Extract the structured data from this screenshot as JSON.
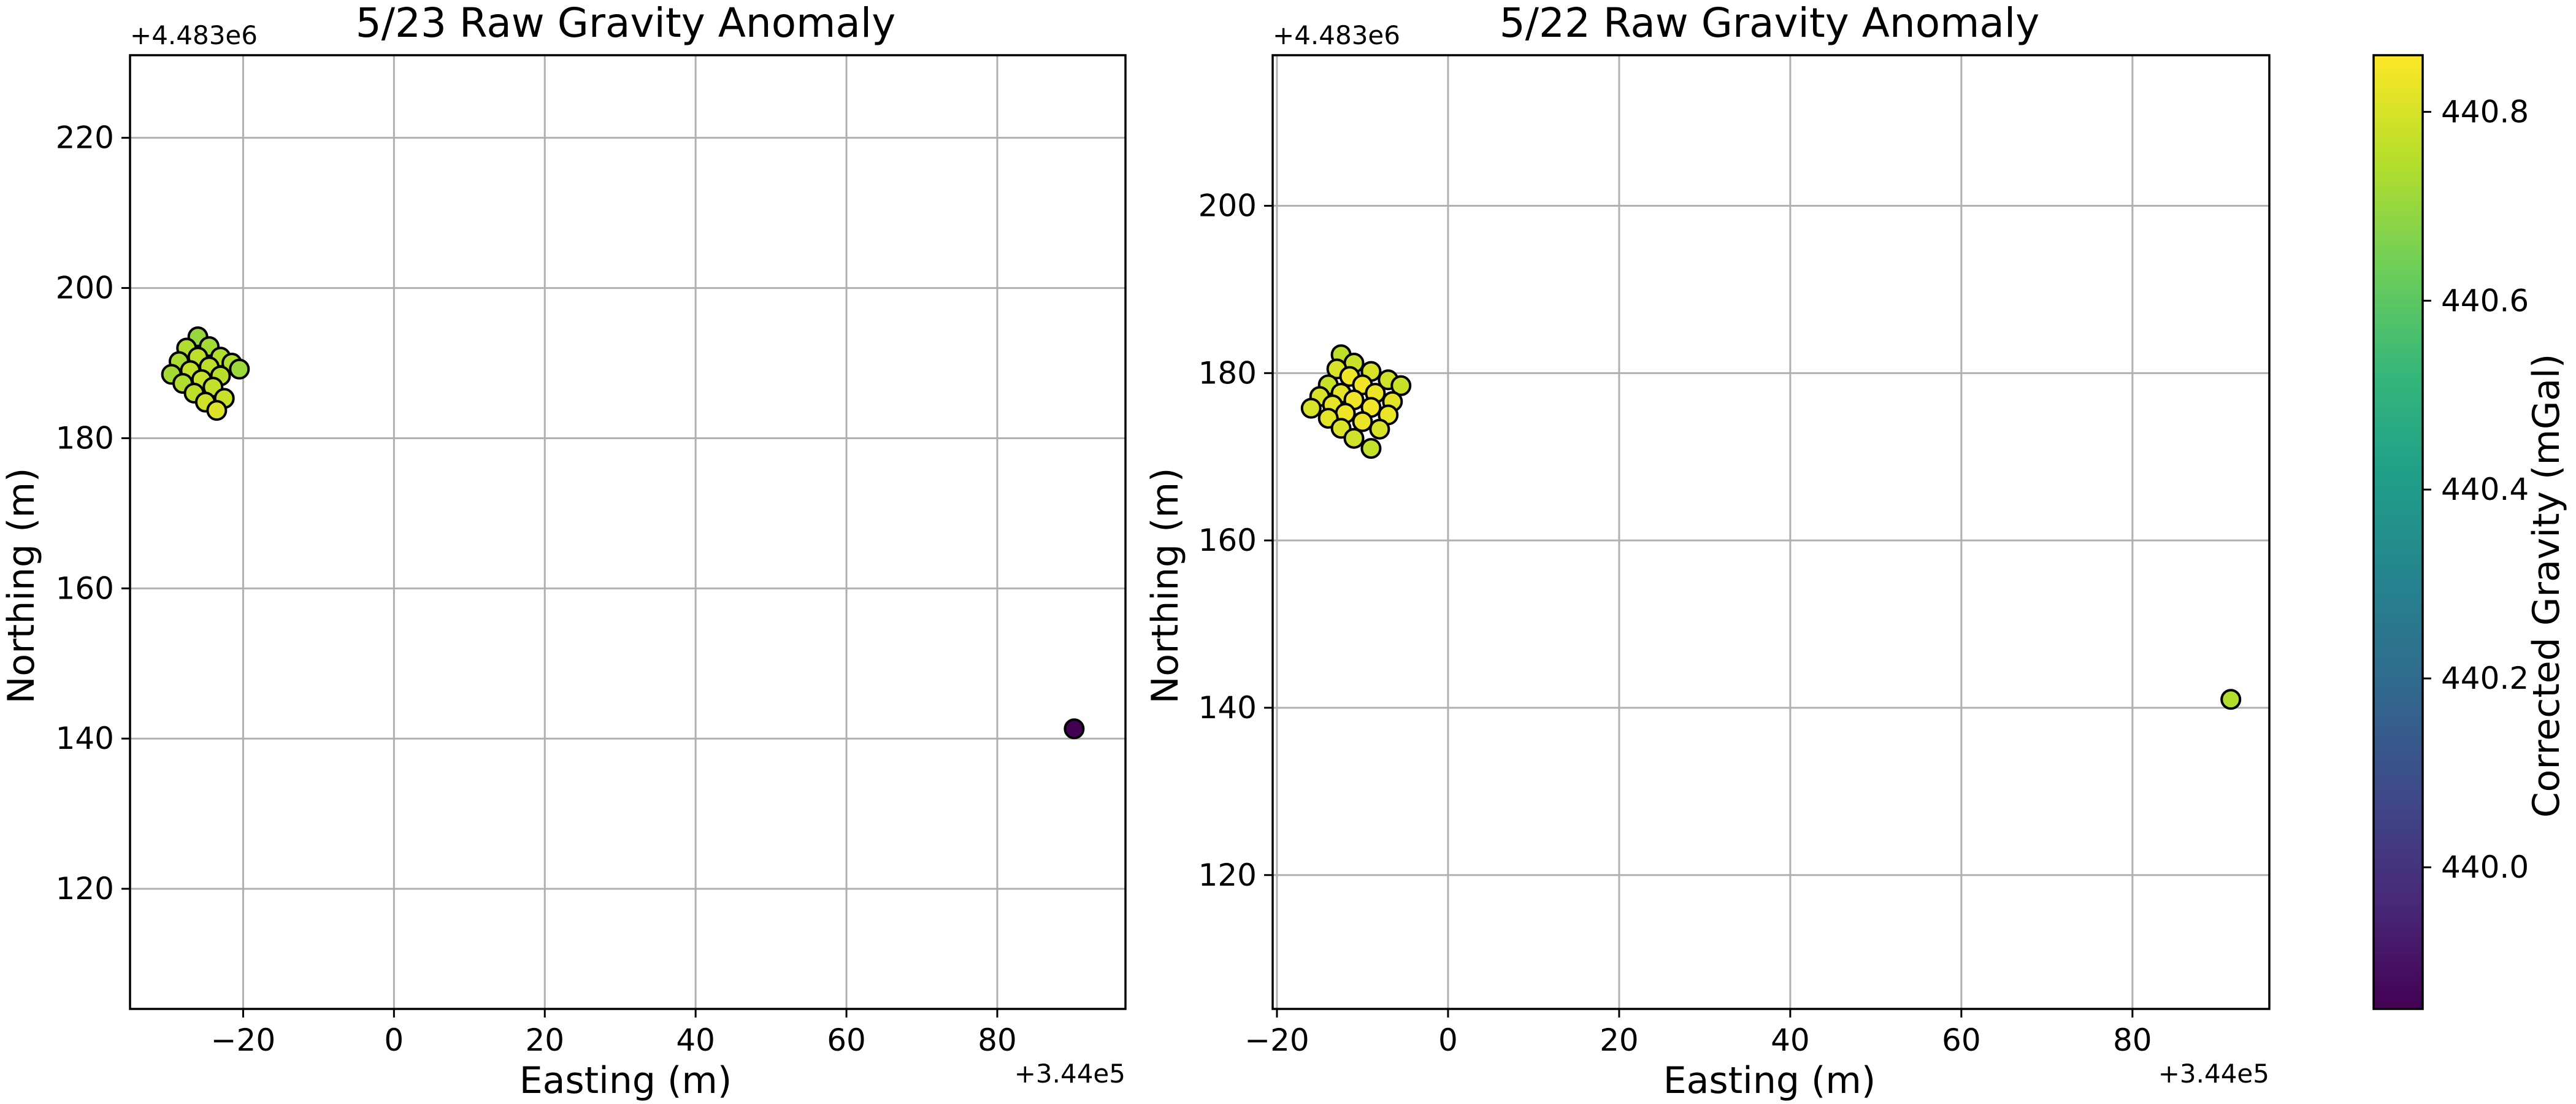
{
  "chart_data": [
    {
      "type": "scatter",
      "title": "5/23 Raw Gravity Anomaly",
      "xlabel": "Easting (m)",
      "ylabel": "Northing (m)",
      "x_offset_label": "+3.44e5",
      "y_offset_label": "+4.483e6",
      "xlim": [
        -35,
        97
      ],
      "ylim": [
        104,
        231
      ],
      "xticks": [
        -20,
        0,
        20,
        40,
        60,
        80
      ],
      "yticks": [
        120,
        140,
        160,
        180,
        200,
        220
      ],
      "grid": true,
      "points": [
        {
          "x": -26,
          "y": 193.5,
          "value": 440.7
        },
        {
          "x": -24.5,
          "y": 192.2,
          "value": 440.72
        },
        {
          "x": -23,
          "y": 190.8,
          "value": 440.74
        },
        {
          "x": -21.5,
          "y": 190.0,
          "value": 440.74
        },
        {
          "x": -20.5,
          "y": 189.2,
          "value": 440.71
        },
        {
          "x": -27.5,
          "y": 192.0,
          "value": 440.74
        },
        {
          "x": -26,
          "y": 190.8,
          "value": 440.76
        },
        {
          "x": -24.5,
          "y": 189.5,
          "value": 440.76
        },
        {
          "x": -23,
          "y": 188.3,
          "value": 440.75
        },
        {
          "x": -28.5,
          "y": 190.2,
          "value": 440.73
        },
        {
          "x": -27,
          "y": 189.0,
          "value": 440.77
        },
        {
          "x": -25.5,
          "y": 187.8,
          "value": 440.78
        },
        {
          "x": -24,
          "y": 186.8,
          "value": 440.77
        },
        {
          "x": -22.5,
          "y": 185.3,
          "value": 440.78
        },
        {
          "x": -29.5,
          "y": 188.5,
          "value": 440.72
        },
        {
          "x": -28,
          "y": 187.3,
          "value": 440.74
        },
        {
          "x": -26.5,
          "y": 186.0,
          "value": 440.76
        },
        {
          "x": -25,
          "y": 184.8,
          "value": 440.79
        },
        {
          "x": -23.5,
          "y": 183.7,
          "value": 440.81
        },
        {
          "x": 90.2,
          "y": 141.3,
          "value": 439.85
        }
      ]
    },
    {
      "type": "scatter",
      "title": "5/22 Raw Gravity Anomaly",
      "xlabel": "Easting (m)",
      "ylabel": "Northing (m)",
      "x_offset_label": "+3.44e5",
      "y_offset_label": "+4.483e6",
      "xlim": [
        -20.5,
        96
      ],
      "ylim": [
        104,
        218
      ],
      "xticks": [
        -20,
        0,
        20,
        40,
        60,
        80
      ],
      "yticks": [
        120,
        140,
        160,
        180,
        200
      ],
      "grid": true,
      "points": [
        {
          "x": -12.5,
          "y": 182.2,
          "value": 440.76
        },
        {
          "x": -11,
          "y": 181.2,
          "value": 440.78
        },
        {
          "x": -9,
          "y": 180.2,
          "value": 440.8
        },
        {
          "x": -7,
          "y": 179.2,
          "value": 440.79
        },
        {
          "x": -5.5,
          "y": 178.5,
          "value": 440.78
        },
        {
          "x": -13,
          "y": 180.5,
          "value": 440.8
        },
        {
          "x": -11.5,
          "y": 179.6,
          "value": 440.84
        },
        {
          "x": -10,
          "y": 178.6,
          "value": 440.84
        },
        {
          "x": -8.5,
          "y": 177.6,
          "value": 440.83
        },
        {
          "x": -6.5,
          "y": 176.6,
          "value": 440.82
        },
        {
          "x": -14,
          "y": 178.6,
          "value": 440.78
        },
        {
          "x": -12.5,
          "y": 177.6,
          "value": 440.82
        },
        {
          "x": -11,
          "y": 176.8,
          "value": 440.84
        },
        {
          "x": -9,
          "y": 175.9,
          "value": 440.84
        },
        {
          "x": -7,
          "y": 175.0,
          "value": 440.83
        },
        {
          "x": -15,
          "y": 177.2,
          "value": 440.8
        },
        {
          "x": -13.5,
          "y": 176.2,
          "value": 440.82
        },
        {
          "x": -12,
          "y": 175.2,
          "value": 440.84
        },
        {
          "x": -10,
          "y": 174.2,
          "value": 440.83
        },
        {
          "x": -8,
          "y": 173.3,
          "value": 440.8
        },
        {
          "x": -16,
          "y": 175.8,
          "value": 440.8
        },
        {
          "x": -14,
          "y": 174.6,
          "value": 440.82
        },
        {
          "x": -12.5,
          "y": 173.4,
          "value": 440.81
        },
        {
          "x": -11,
          "y": 172.2,
          "value": 440.79
        },
        {
          "x": -9,
          "y": 171.0,
          "value": 440.77
        },
        {
          "x": 91.5,
          "y": 141.0,
          "value": 440.74
        }
      ]
    }
  ],
  "colorbar": {
    "label": "Corrected Gravity (mGal)",
    "min": 439.85,
    "max": 440.86,
    "ticks": [
      440.0,
      440.2,
      440.4,
      440.6,
      440.8
    ],
    "tick_labels": [
      "440.0",
      "440.2",
      "440.4",
      "440.6",
      "440.8"
    ],
    "colormap": "viridis",
    "stops": [
      "#440154",
      "#482878",
      "#3e4989",
      "#31688e",
      "#26828e",
      "#1f9e89",
      "#35b779",
      "#6ece58",
      "#b5de2b",
      "#fde725"
    ]
  }
}
